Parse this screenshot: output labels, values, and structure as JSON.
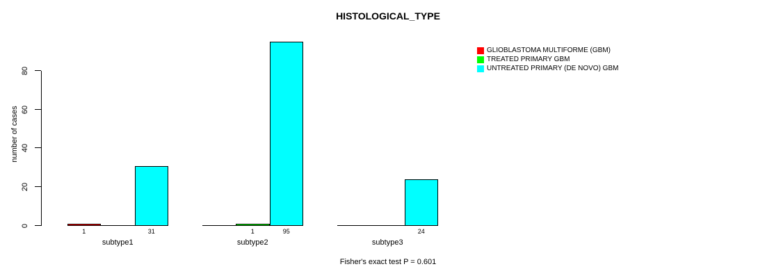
{
  "chart_data": {
    "type": "bar",
    "title": "HISTOLOGICAL_TYPE",
    "ylabel": "number of cases",
    "xlabel": "",
    "categories": [
      "subtype1",
      "subtype2",
      "subtype3"
    ],
    "series": [
      {
        "name": "GLIOBLASTOMA MULTIFORME (GBM)",
        "color": "#ff0000",
        "values": [
          1,
          0,
          0
        ]
      },
      {
        "name": "TREATED PRIMARY GBM",
        "color": "#00ff00",
        "values": [
          0,
          1,
          0
        ]
      },
      {
        "name": "UNTREATED PRIMARY (DE NOVO) GBM",
        "color": "#00ffff",
        "values": [
          31,
          95,
          24
        ]
      }
    ],
    "yticks": [
      0,
      20,
      40,
      60,
      80
    ],
    "ylim": [
      0,
      95
    ],
    "grid": false,
    "legend_position": "top-right",
    "value_labels_shown_for_positive_bars": true,
    "annotation": "Fisher's exact test P = 0.601"
  }
}
